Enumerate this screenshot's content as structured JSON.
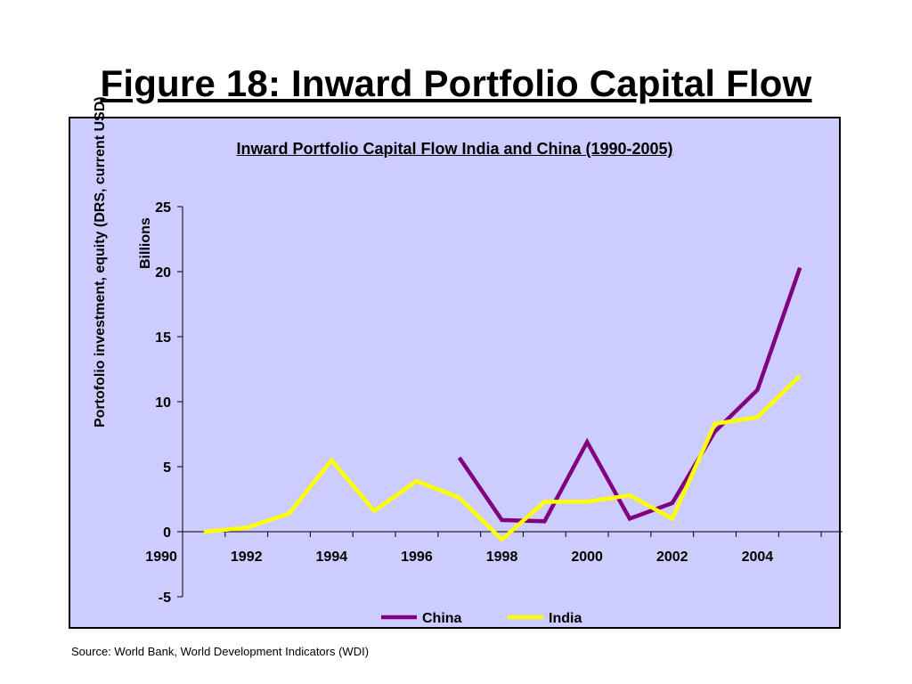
{
  "slide": {
    "title": "Figure 18: Inward Portfolio Capital Flow",
    "source": "Source: World Bank, World Development Indicators (WDI)"
  },
  "chart_data": {
    "type": "line",
    "title": "Inward Portfolio Capital Flow India and China (1990-2005)",
    "ylabel": "Portofolio investment, equity (DRS, current USD)",
    "yunit_label": "Billions",
    "xlabel": "",
    "x": [
      1990,
      1991,
      1992,
      1993,
      1994,
      1995,
      1996,
      1997,
      1998,
      1999,
      2000,
      2001,
      2002,
      2003,
      2004,
      2005
    ],
    "x_tick_labels": [
      "1990",
      "1992",
      "1994",
      "1996",
      "1998",
      "2000",
      "2002",
      "2004"
    ],
    "ylim": [
      -5,
      25
    ],
    "y_ticks": [
      -5,
      0,
      5,
      10,
      15,
      20,
      25
    ],
    "grid": false,
    "legend_position": "bottom",
    "series": [
      {
        "name": "China",
        "color": "#800080",
        "values": [
          null,
          null,
          null,
          null,
          null,
          null,
          null,
          5.7,
          0.9,
          0.8,
          6.9,
          1.0,
          2.2,
          7.7,
          10.9,
          20.3
        ]
      },
      {
        "name": "India",
        "color": "#ffff00",
        "values": [
          null,
          0.0,
          0.3,
          1.4,
          5.5,
          1.6,
          3.9,
          2.6,
          -0.6,
          2.3,
          2.3,
          2.8,
          1.0,
          8.3,
          8.8,
          12.0
        ]
      }
    ]
  }
}
